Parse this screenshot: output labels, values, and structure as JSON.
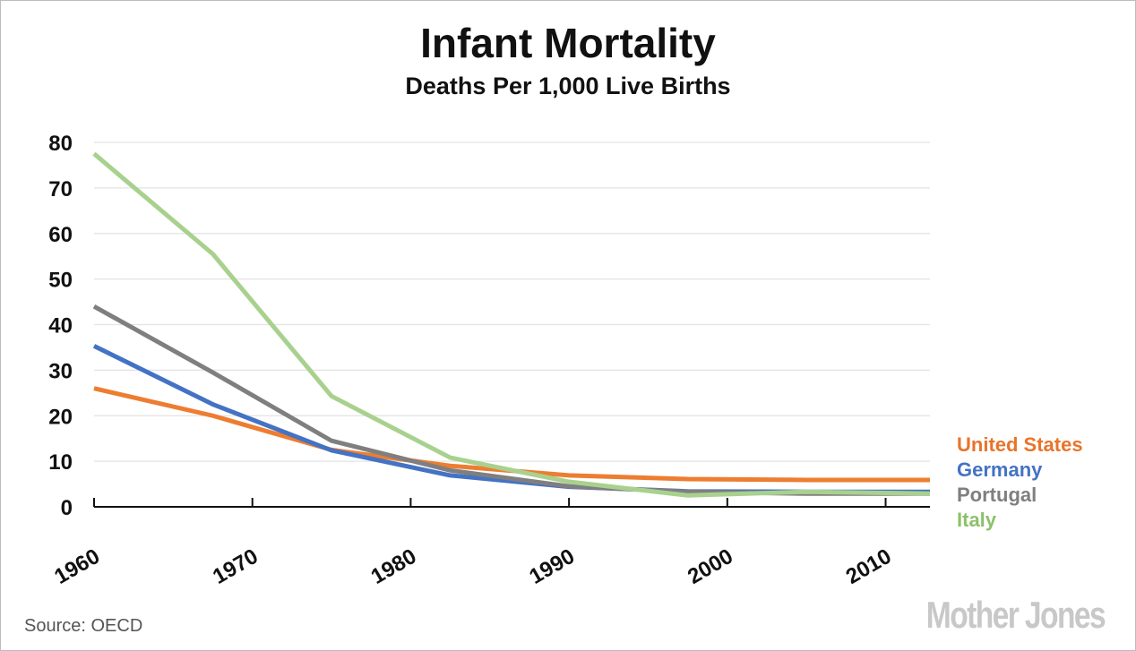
{
  "chart_data": {
    "type": "line",
    "title": "Infant Mortality",
    "subtitle": "Deaths Per 1,000 Live Births",
    "xlabel": "",
    "ylabel": "",
    "xlim": [
      1960,
      2012.8
    ],
    "ylim": [
      0,
      80
    ],
    "yticks": [
      0,
      10,
      20,
      30,
      40,
      50,
      60,
      70,
      80
    ],
    "xticks": [
      1960,
      1970,
      1980,
      1990,
      2000,
      2010
    ],
    "grid": true,
    "legend": "right",
    "x": [
      1960,
      1967.5,
      1975,
      1982.5,
      1990,
      1997.5,
      2005,
      2012.8
    ],
    "series": [
      {
        "name": "United States",
        "color": "#ED7D31",
        "label_color": "#E8742A",
        "values": [
          26,
          20,
          12.5,
          9,
          6.9,
          6.1,
          5.9,
          5.9
        ]
      },
      {
        "name": "Germany",
        "color": "#4472C4",
        "label_color": "#4472C4",
        "values": [
          35.3,
          22.5,
          12.4,
          6.9,
          4.4,
          3.4,
          3.3,
          3.3
        ]
      },
      {
        "name": "Portugal",
        "color": "#7F7F7F",
        "label_color": "#7F7F7F",
        "values": [
          44,
          29.5,
          14.5,
          8,
          4.5,
          3.3,
          2.9,
          2.9
        ]
      },
      {
        "name": "Italy",
        "color": "#A9D18E",
        "label_color": "#8CC16A",
        "values": [
          77.5,
          55.5,
          24.3,
          10.8,
          5.5,
          2.5,
          3.3,
          2.9
        ]
      }
    ]
  },
  "source": "Source:  OECD",
  "logo": "Mother Jones"
}
